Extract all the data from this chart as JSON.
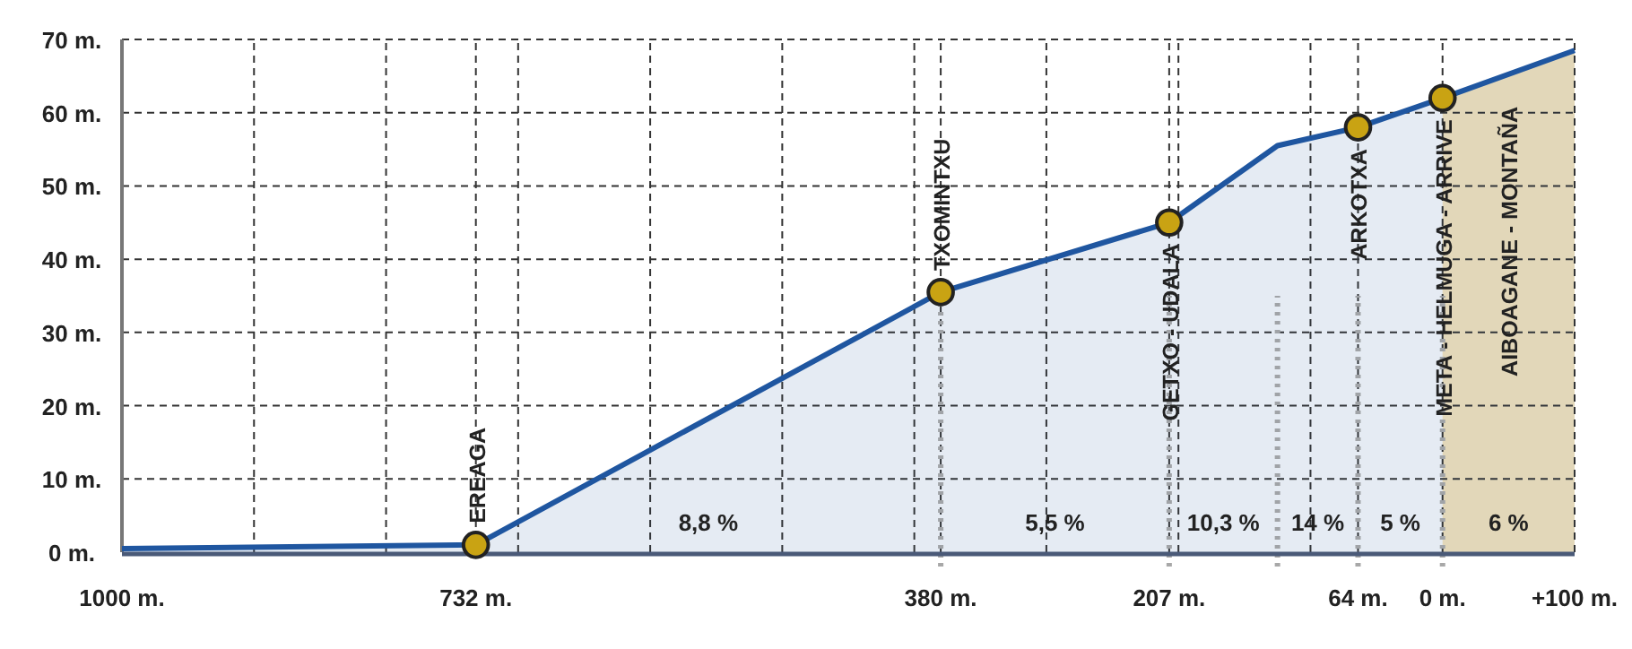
{
  "chart_data": {
    "type": "area",
    "xlim": [
      1000,
      -100
    ],
    "xticks": [
      {
        "value": 1000,
        "label": "1000 m."
      },
      {
        "value": 900,
        "label": null
      },
      {
        "value": 800,
        "label": null
      },
      {
        "value": 732,
        "label": "732 m."
      },
      {
        "value": 700,
        "label": null
      },
      {
        "value": 600,
        "label": null
      },
      {
        "value": 500,
        "label": null
      },
      {
        "value": 400,
        "label": null
      },
      {
        "value": 380,
        "label": "380 m."
      },
      {
        "value": 300,
        "label": null
      },
      {
        "value": 207,
        "label": "207 m."
      },
      {
        "value": 200,
        "label": null
      },
      {
        "value": 100,
        "label": null
      },
      {
        "value": 64,
        "label": "64 m."
      },
      {
        "value": 0,
        "label": "0 m."
      },
      {
        "value": -100,
        "label": "+100 m."
      }
    ],
    "ylim": [
      0,
      70
    ],
    "yticks": [
      {
        "value": 0,
        "label": "0 m."
      },
      {
        "value": 10,
        "label": "10 m."
      },
      {
        "value": 20,
        "label": "20 m."
      },
      {
        "value": 30,
        "label": "30 m."
      },
      {
        "value": 40,
        "label": "40 m."
      },
      {
        "value": 50,
        "label": "50 m."
      },
      {
        "value": 60,
        "label": "60 m."
      },
      {
        "value": 70,
        "label": "70 m."
      }
    ],
    "grid": true,
    "series": [
      {
        "color": "#1f56a0",
        "marker": "none",
        "x": [
          1000,
          732,
          380,
          207,
          125,
          64,
          0,
          -100
        ],
        "values": [
          0.5,
          1,
          35.5,
          45,
          55.5,
          58,
          62,
          68.5
        ]
      },
      {
        "type": "scatter",
        "color": "#c9a313",
        "marker": "circle",
        "x": [
          732,
          380,
          207,
          64,
          0
        ],
        "values": [
          1,
          35.5,
          45,
          58,
          62
        ],
        "value_labels": [
          "EREAGA",
          "TXOMINTXU",
          "GETXO - UDALA",
          "ARKOTXA",
          "META - HELMUGA - ARRIVE"
        ]
      }
    ],
    "bands": [
      {
        "axis": "x",
        "from": 0,
        "to": -100,
        "label": "AIBOAGANE - MONTAÑA",
        "color": "#eee0bc"
      }
    ],
    "ref_lines": [
      {
        "axis": "x",
        "value": 380,
        "color": "#a8a8a8",
        "line_style": "dotted"
      },
      {
        "axis": "x",
        "value": 207,
        "color": "#a8a8a8",
        "line_style": "dotted"
      },
      {
        "axis": "x",
        "value": 125,
        "color": "#a8a8a8",
        "line_style": "dotted"
      },
      {
        "axis": "x",
        "value": 64,
        "color": "#a8a8a8",
        "line_style": "dotted"
      },
      {
        "axis": "x",
        "value": 0,
        "color": "#a8a8a8",
        "line_style": "dotted"
      }
    ],
    "annotations": [
      "8,8 %",
      "5,5 %",
      "10,3 %",
      "14 %",
      "5 %",
      "6 %"
    ]
  }
}
